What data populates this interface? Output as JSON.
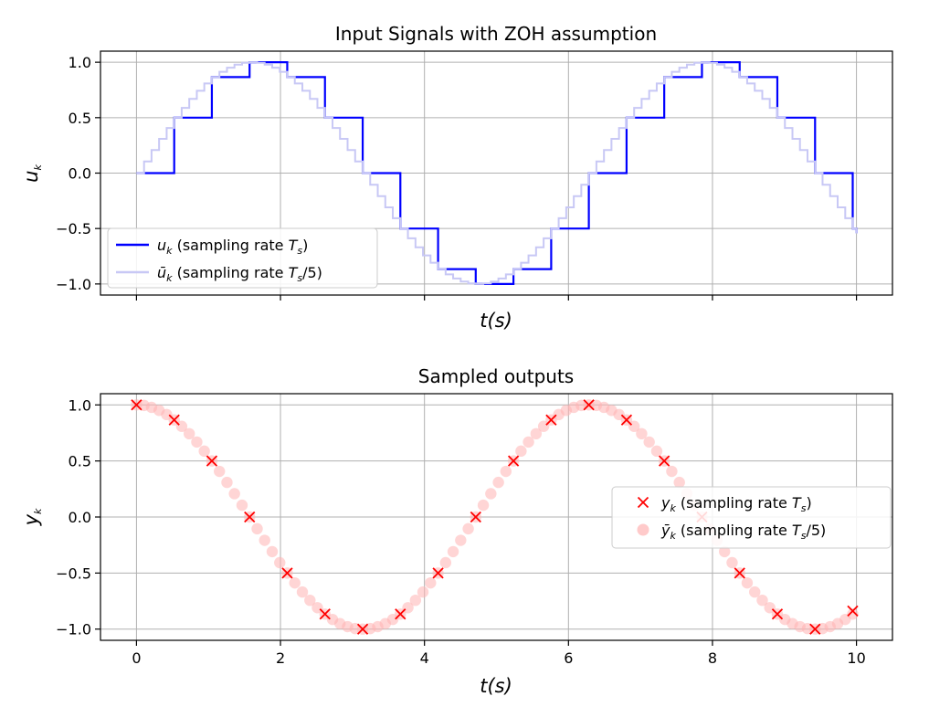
{
  "chart_data": [
    {
      "type": "line",
      "title": "Input Signals with ZOH assumption",
      "xlabel": "t(s)",
      "ylabel": "u_k",
      "xlim": [
        -0.5,
        10.5
      ],
      "ylim": [
        -1.1,
        1.1
      ],
      "yticks": [
        1.0,
        0.5,
        0.0,
        -0.5,
        -1.0
      ],
      "ytick_labels": [
        "1.0",
        "0.5",
        "0.0",
        "−0.5",
        "−1.0"
      ],
      "xticks": [
        0,
        2,
        4,
        6,
        8,
        10
      ],
      "xtick_labels_visible": false,
      "grid": true,
      "legend_placement": "lower-left",
      "series": [
        {
          "name": "u_k (sampling rate T_s)",
          "style": "step-post",
          "color": "#0000ff",
          "x": [
            0,
            0.524,
            1.047,
            1.571,
            2.094,
            2.618,
            3.142,
            3.665,
            4.189,
            4.712,
            5.236,
            5.76,
            6.283,
            6.807,
            7.33,
            7.854,
            8.378,
            8.901,
            9.425,
            9.948,
            10.0
          ],
          "y": [
            0,
            0.5,
            0.866,
            1.0,
            0.866,
            0.5,
            0.0,
            -0.5,
            -0.866,
            -1.0,
            -0.866,
            -0.5,
            0.0,
            0.5,
            0.866,
            1.0,
            0.866,
            0.5,
            0.0,
            -0.5,
            -0.544
          ]
        },
        {
          "name": "ū_k (sampling rate T_s/5)",
          "style": "step-post",
          "color": "#c8c8f5",
          "x": [
            0,
            0.105,
            0.209,
            0.314,
            0.419,
            0.524,
            0.628,
            0.733,
            0.838,
            0.942,
            1.047,
            1.152,
            1.257,
            1.361,
            1.466,
            1.571,
            1.676,
            1.78,
            1.885,
            1.99,
            2.094,
            2.199,
            2.304,
            2.409,
            2.513,
            2.618,
            2.723,
            2.827,
            2.932,
            3.037,
            3.142,
            3.246,
            3.351,
            3.456,
            3.56,
            3.665,
            3.77,
            3.875,
            3.979,
            4.084,
            4.189,
            4.294,
            4.398,
            4.503,
            4.608,
            4.712,
            4.817,
            4.922,
            5.027,
            5.131,
            5.236,
            5.341,
            5.445,
            5.55,
            5.655,
            5.76,
            5.864,
            5.969,
            6.074,
            6.178,
            6.283,
            6.388,
            6.493,
            6.597,
            6.702,
            6.807,
            6.912,
            7.016,
            7.121,
            7.226,
            7.33,
            7.435,
            7.54,
            7.645,
            7.749,
            7.854,
            7.959,
            8.063,
            8.168,
            8.273,
            8.378,
            8.482,
            8.587,
            8.692,
            8.796,
            8.901,
            9.006,
            9.111,
            9.215,
            9.32,
            9.425,
            9.529,
            9.634,
            9.739,
            9.844,
            9.948,
            10.0
          ],
          "y": [
            0,
            0.105,
            0.208,
            0.309,
            0.407,
            0.5,
            0.588,
            0.669,
            0.743,
            0.809,
            0.866,
            0.914,
            0.951,
            0.978,
            0.995,
            1.0,
            0.995,
            0.978,
            0.951,
            0.914,
            0.866,
            0.809,
            0.743,
            0.669,
            0.588,
            0.5,
            0.407,
            0.309,
            0.208,
            0.105,
            0.0,
            -0.105,
            -0.208,
            -0.309,
            -0.407,
            -0.5,
            -0.588,
            -0.669,
            -0.743,
            -0.809,
            -0.866,
            -0.914,
            -0.951,
            -0.978,
            -0.995,
            -1.0,
            -0.995,
            -0.978,
            -0.951,
            -0.914,
            -0.866,
            -0.809,
            -0.743,
            -0.669,
            -0.588,
            -0.5,
            -0.407,
            -0.309,
            -0.208,
            -0.105,
            0.0,
            0.105,
            0.208,
            0.309,
            0.407,
            0.5,
            0.588,
            0.669,
            0.743,
            0.809,
            0.866,
            0.914,
            0.951,
            0.978,
            0.995,
            1.0,
            0.995,
            0.978,
            0.951,
            0.914,
            0.866,
            0.809,
            0.743,
            0.669,
            0.588,
            0.5,
            0.407,
            0.309,
            0.208,
            0.105,
            0.0,
            -0.105,
            -0.208,
            -0.309,
            -0.407,
            -0.5,
            -0.544
          ]
        }
      ]
    },
    {
      "type": "scatter",
      "title": "Sampled outputs",
      "xlabel": "t(s)",
      "ylabel": "y_k",
      "xlim": [
        -0.5,
        10.5
      ],
      "ylim": [
        -1.1,
        1.1
      ],
      "yticks": [
        1.0,
        0.5,
        0.0,
        -0.5,
        -1.0
      ],
      "ytick_labels": [
        "1.0",
        "0.5",
        "0.0",
        "−0.5",
        "−1.0"
      ],
      "xticks": [
        0,
        2,
        4,
        6,
        8,
        10
      ],
      "xtick_labels": [
        "0",
        "2",
        "4",
        "6",
        "8",
        "10"
      ],
      "grid": true,
      "legend_placement": "center-right",
      "series": [
        {
          "name": "y_k (sampling rate T_s)",
          "marker": "x",
          "color": "#ff0000",
          "x": [
            0,
            0.524,
            1.047,
            1.571,
            2.094,
            2.618,
            3.142,
            3.665,
            4.189,
            4.712,
            5.236,
            5.76,
            6.283,
            6.807,
            7.33,
            7.854,
            8.378,
            8.901,
            9.425,
            9.948
          ],
          "y": [
            1.0,
            0.866,
            0.5,
            0.0,
            -0.5,
            -0.866,
            -1.0,
            -0.866,
            -0.5,
            0.0,
            0.5,
            0.866,
            1.0,
            0.866,
            0.5,
            0.0,
            -0.5,
            -0.866,
            -1.0,
            -0.838
          ]
        },
        {
          "name": "ȳ_k (sampling rate T_s/5)",
          "marker": "o",
          "color": "#ffb3b3",
          "x": [
            0,
            0.105,
            0.209,
            0.314,
            0.419,
            0.524,
            0.628,
            0.733,
            0.838,
            0.942,
            1.047,
            1.152,
            1.257,
            1.361,
            1.466,
            1.571,
            1.676,
            1.78,
            1.885,
            1.99,
            2.094,
            2.199,
            2.304,
            2.409,
            2.513,
            2.618,
            2.723,
            2.827,
            2.932,
            3.037,
            3.142,
            3.246,
            3.351,
            3.456,
            3.56,
            3.665,
            3.77,
            3.875,
            3.979,
            4.084,
            4.189,
            4.294,
            4.398,
            4.503,
            4.608,
            4.712,
            4.817,
            4.922,
            5.027,
            5.131,
            5.236,
            5.341,
            5.445,
            5.55,
            5.655,
            5.76,
            5.864,
            5.969,
            6.074,
            6.178,
            6.283,
            6.388,
            6.493,
            6.597,
            6.702,
            6.807,
            6.912,
            7.016,
            7.121,
            7.226,
            7.33,
            7.435,
            7.54,
            7.645,
            7.749,
            7.854,
            7.959,
            8.063,
            8.168,
            8.273,
            8.378,
            8.482,
            8.587,
            8.692,
            8.796,
            8.901,
            9.006,
            9.111,
            9.215,
            9.32,
            9.425,
            9.529,
            9.634,
            9.739,
            9.844,
            9.948
          ],
          "y": [
            1.0,
            0.995,
            0.978,
            0.951,
            0.914,
            0.866,
            0.809,
            0.743,
            0.669,
            0.588,
            0.5,
            0.407,
            0.309,
            0.208,
            0.105,
            0.0,
            -0.105,
            -0.208,
            -0.309,
            -0.407,
            -0.5,
            -0.588,
            -0.669,
            -0.743,
            -0.809,
            -0.866,
            -0.914,
            -0.951,
            -0.978,
            -0.995,
            -1.0,
            -0.995,
            -0.978,
            -0.951,
            -0.914,
            -0.866,
            -0.809,
            -0.743,
            -0.669,
            -0.588,
            -0.5,
            -0.407,
            -0.309,
            -0.208,
            -0.105,
            0.0,
            0.105,
            0.208,
            0.309,
            0.407,
            0.5,
            0.588,
            0.669,
            0.743,
            0.809,
            0.866,
            0.914,
            0.951,
            0.978,
            0.995,
            1.0,
            0.995,
            0.978,
            0.951,
            0.914,
            0.866,
            0.809,
            0.743,
            0.669,
            0.588,
            0.5,
            0.407,
            0.309,
            0.208,
            0.105,
            0.0,
            -0.105,
            -0.208,
            -0.309,
            -0.407,
            -0.5,
            -0.588,
            -0.669,
            -0.743,
            -0.809,
            -0.866,
            -0.914,
            -0.951,
            -0.978,
            -0.995,
            -1.0,
            -0.995,
            -0.978,
            -0.951,
            -0.914,
            -0.866
          ]
        }
      ]
    }
  ]
}
